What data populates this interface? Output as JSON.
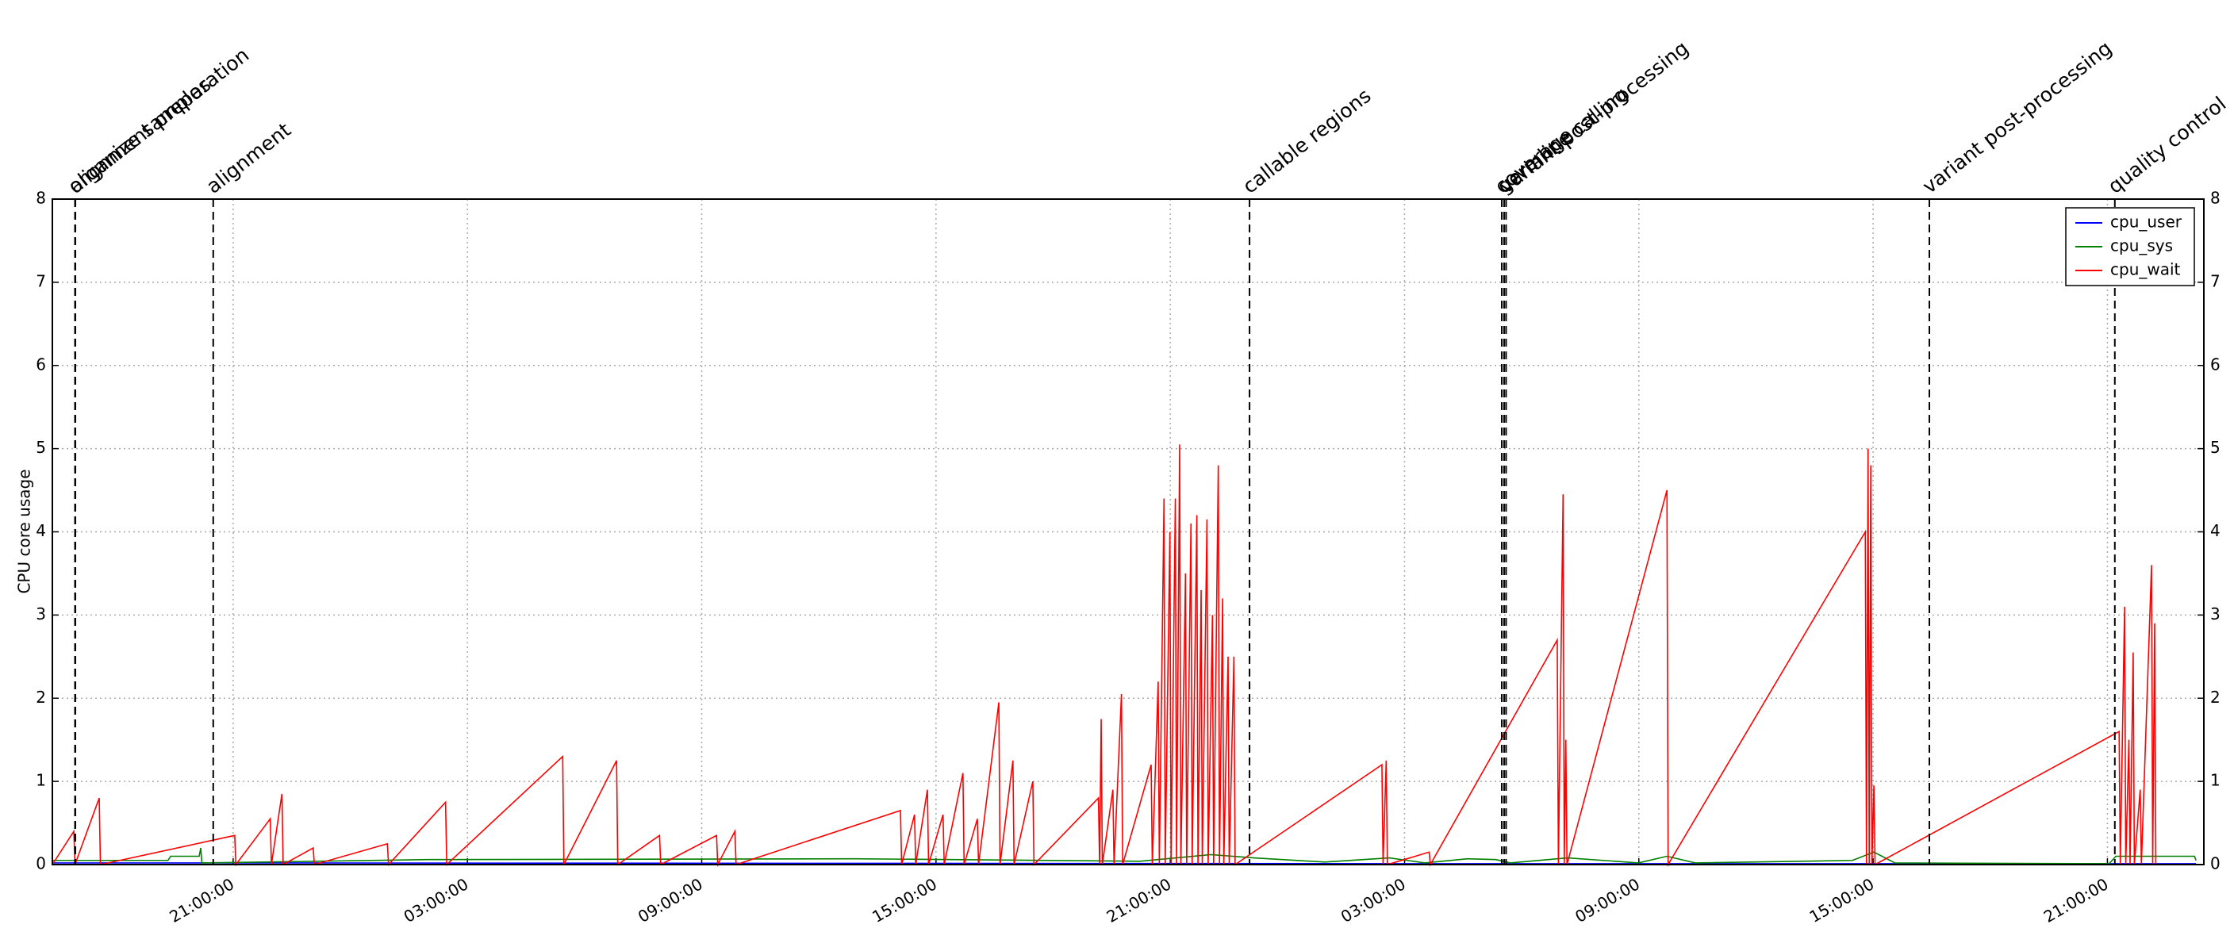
{
  "chart_data": {
    "type": "line",
    "y_label": "CPU core usage",
    "xlim": [
      16.37,
      71.47
    ],
    "xticks": [
      {
        "value": 21,
        "label": "21:00:00"
      },
      {
        "value": 27,
        "label": "03:00:00"
      },
      {
        "value": 33,
        "label": "09:00:00"
      },
      {
        "value": 39,
        "label": "15:00:00"
      },
      {
        "value": 45,
        "label": "21:00:00"
      },
      {
        "value": 51,
        "label": "03:00:00"
      },
      {
        "value": 57,
        "label": "09:00:00"
      },
      {
        "value": 63,
        "label": "15:00:00"
      },
      {
        "value": 69,
        "label": "21:00:00"
      }
    ],
    "ylim": [
      0,
      8
    ],
    "yticks": [
      0,
      1,
      2,
      3,
      4,
      5,
      6,
      7,
      8
    ],
    "grid": true,
    "legend": "upper right",
    "events": [
      {
        "label": "organize samples",
        "x": 16.95
      },
      {
        "label": "alignment preparation",
        "x": 16.96
      },
      {
        "label": "alignment",
        "x": 20.49
      },
      {
        "label": "callable regions",
        "x": 47.03
      },
      {
        "label": "coverage",
        "x": 53.49
      },
      {
        "label": "germline calling",
        "x": 53.55
      },
      {
        "label": "variant post-processing",
        "x": 53.6
      },
      {
        "label": "variant post-processing",
        "x": 64.44
      },
      {
        "label": "quality control",
        "x": 69.19
      }
    ],
    "series": [
      {
        "name": "cpu_user",
        "color": "#0000ff",
        "x": [
          16.37,
          20.2,
          53.6,
          71.27
        ],
        "values": [
          0.02,
          0.02,
          0.01,
          0.01
        ]
      },
      {
        "name": "cpu_sys",
        "color": "#008000",
        "x": [
          16.37,
          19.33,
          19.4,
          20.13,
          20.17,
          20.2,
          25.97,
          36.92,
          44.22,
          46.04,
          47.14,
          47.87,
          48.96,
          50.61,
          51.52,
          52.61,
          53.34,
          53.71,
          55.17,
          56.99,
          57.72,
          58.45,
          62.47,
          63.02,
          63.56,
          69.04,
          69.22,
          71.23,
          71.27
        ],
        "values": [
          0.05,
          0.05,
          0.1,
          0.1,
          0.2,
          0.02,
          0.06,
          0.07,
          0.04,
          0.12,
          0.08,
          0.06,
          0.03,
          0.08,
          0.02,
          0.07,
          0.06,
          0.02,
          0.08,
          0.02,
          0.1,
          0.02,
          0.05,
          0.15,
          0.02,
          0.01,
          0.1,
          0.1,
          0.05
        ]
      },
      {
        "name": "cpu_wait",
        "color": "#ff0000",
        "x": [
          16.37,
          16.92,
          16.95,
          17.57,
          17.6,
          21.04,
          21.07,
          21.95,
          21.98,
          22.25,
          22.28,
          23.05,
          23.08,
          24.95,
          24.98,
          26.44,
          26.47,
          29.44,
          29.47,
          30.82,
          30.85,
          31.92,
          31.95,
          33.38,
          33.41,
          33.85,
          33.88,
          38.09,
          38.12,
          38.45,
          38.48,
          38.78,
          38.81,
          39.18,
          39.21,
          39.69,
          39.72,
          40.06,
          40.09,
          40.61,
          40.64,
          40.97,
          41.0,
          41.48,
          41.51,
          43.16,
          43.19,
          43.23,
          43.26,
          43.53,
          43.56,
          43.75,
          43.78,
          44.51,
          44.54,
          44.69,
          44.72,
          44.84,
          44.87,
          44.99,
          45.02,
          45.13,
          45.16,
          45.24,
          45.27,
          45.39,
          45.42,
          45.53,
          45.56,
          45.68,
          45.71,
          45.79,
          45.82,
          45.94,
          45.97,
          46.08,
          46.11,
          46.23,
          46.26,
          46.34,
          46.37,
          46.48,
          46.51,
          46.63,
          46.66,
          50.42,
          50.45,
          50.53,
          50.56,
          51.63,
          51.66,
          54.91,
          54.94,
          55.06,
          55.09,
          55.13,
          55.16,
          57.72,
          57.75,
          62.8,
          62.83,
          62.87,
          62.9,
          62.94,
          62.97,
          63.02,
          63.05,
          69.3,
          69.33,
          69.44,
          69.47,
          69.55,
          69.58,
          69.66,
          69.69,
          69.84,
          69.87,
          70.13,
          70.16,
          70.21,
          70.24,
          71.27
        ],
        "values": [
          0,
          0.4,
          0,
          0.8,
          0,
          0.35,
          0,
          0.55,
          0,
          0.85,
          0,
          0.2,
          0,
          0.25,
          0,
          0.75,
          0,
          1.3,
          0,
          1.25,
          0,
          0.35,
          0,
          0.35,
          0,
          0.4,
          0,
          0.65,
          0,
          0.6,
          0,
          0.9,
          0,
          0.6,
          0,
          1.1,
          0,
          0.55,
          0,
          1.95,
          0,
          1.25,
          0,
          1.0,
          0,
          0.8,
          0,
          1.75,
          0,
          0.9,
          0,
          2.05,
          0,
          1.2,
          0,
          2.2,
          0,
          4.4,
          0,
          4.0,
          0,
          4.4,
          0,
          5.05,
          0,
          3.5,
          0,
          4.1,
          0,
          4.2,
          0,
          3.3,
          0,
          4.15,
          0,
          3.0,
          0,
          4.8,
          0,
          3.2,
          0,
          2.5,
          0,
          2.5,
          0,
          1.2,
          0,
          1.25,
          0,
          0.15,
          0,
          2.7,
          0,
          4.45,
          0,
          1.5,
          0,
          4.5,
          0,
          4.0,
          0,
          5.0,
          0,
          4.8,
          0,
          0.95,
          0,
          1.6,
          0,
          3.1,
          0,
          1.5,
          0,
          2.55,
          0,
          0.9,
          0,
          3.6,
          0,
          2.9,
          0,
          0
        ]
      }
    ]
  }
}
